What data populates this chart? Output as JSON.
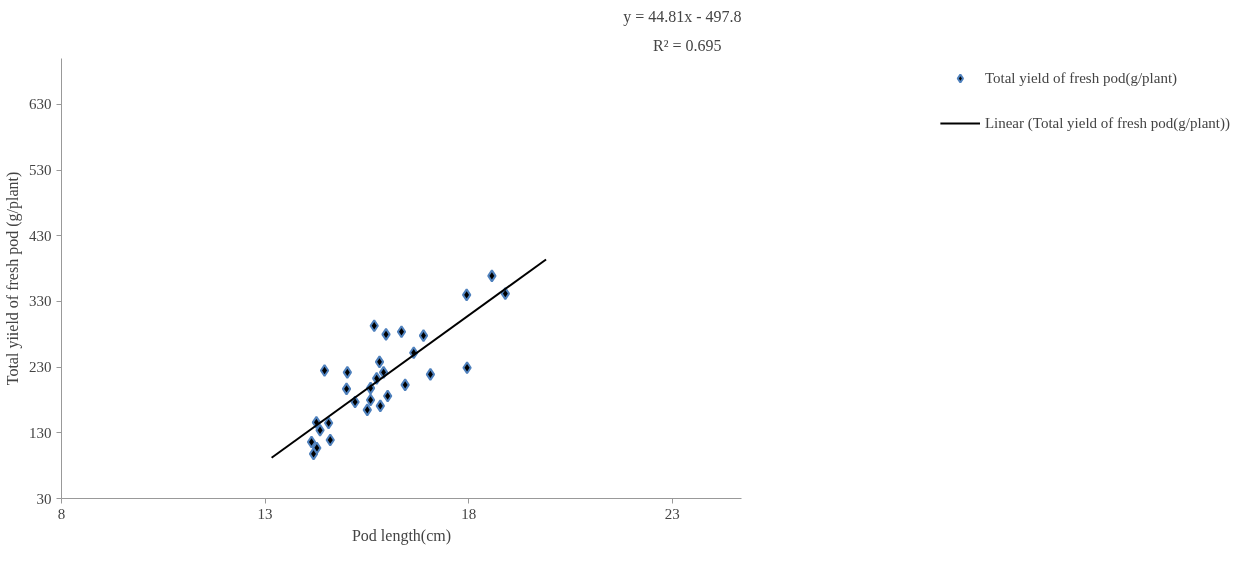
{
  "chart_data": {
    "type": "scatter",
    "xlabel": "Pod length(cm)",
    "ylabel": "Total yiield of fresh pod (g/plant)",
    "xlim": [
      8,
      24.7
    ],
    "ylim": [
      30,
      700
    ],
    "xticks": [
      8,
      13,
      18,
      23
    ],
    "yticks": [
      30,
      130,
      230,
      330,
      430,
      530,
      630
    ],
    "grid": false,
    "legend": "right",
    "annotations": [
      "y = 44.81x - 497.8",
      "R² = 0.695"
    ],
    "series": [
      {
        "name": "Total yield of fresh pod(g/plant)",
        "marker": "diamond",
        "color": "#000000",
        "x": [
          18.57,
          18.9,
          17.95,
          15.68,
          15.97,
          16.35,
          16.89,
          16.65,
          15.81,
          14.46,
          15.02,
          15.91,
          15.74,
          17.06,
          17.96,
          15.0,
          15.59,
          16.44,
          15.21,
          15.59,
          16.01,
          15.51,
          15.83,
          14.26,
          14.56,
          14.35,
          14.6,
          14.14,
          14.27,
          14.19
        ],
        "values": [
          369,
          342,
          340,
          293,
          280,
          284,
          278,
          252,
          238,
          225,
          222,
          222,
          213,
          219,
          229,
          197,
          198,
          203,
          177,
          180,
          186,
          165,
          171,
          146,
          145,
          134,
          119,
          116,
          107,
          98
        ]
      },
      {
        "name": "Linear (Total yield of fresh pod(g/plant))",
        "type": "line",
        "color": "#000000",
        "line_style": "solid",
        "x": [
          13.16,
          19.9
        ],
        "values": [
          92,
          394
        ]
      }
    ]
  }
}
